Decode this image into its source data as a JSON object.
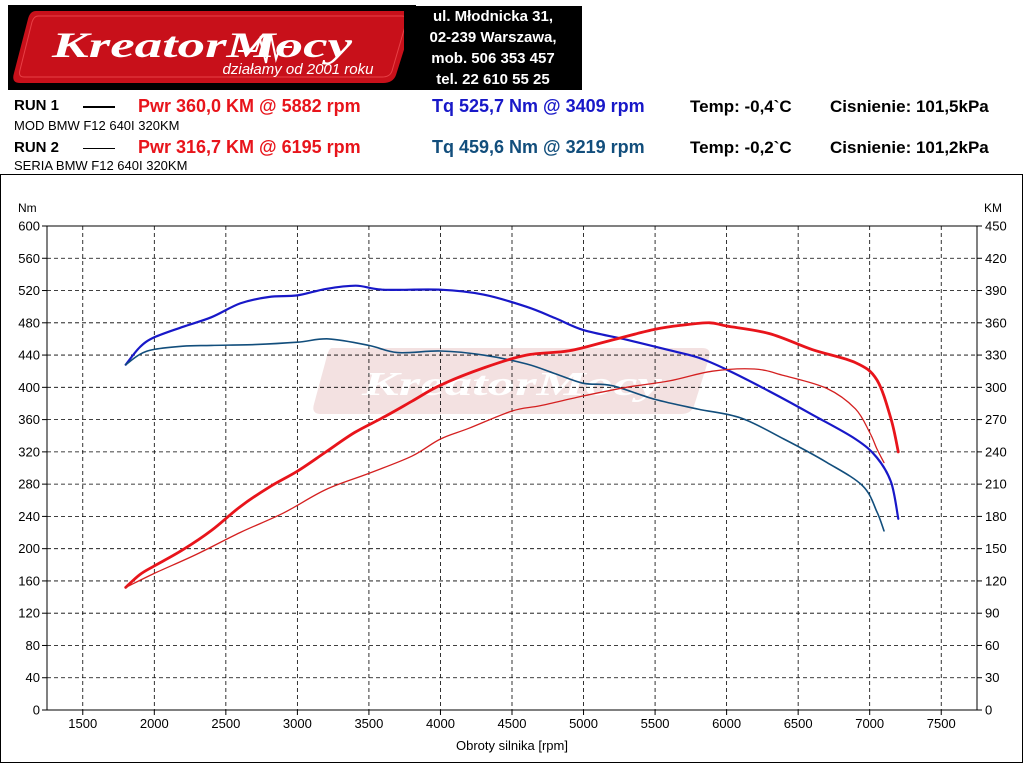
{
  "header": {
    "logo": {
      "brand": "KreatorMocy",
      "tagline": "działamy od 2001 roku"
    },
    "address": [
      "ul. Młodnicka 31,",
      "02-239  Warszawa,",
      "mob.  506 353 457",
      "tel.  22 610 55 25"
    ]
  },
  "runs": [
    {
      "label": "RUN 1",
      "pwr": "Pwr  360,0 KM @ 5882 rpm",
      "tq": "Tq 525,7 Nm @ 3409 rpm",
      "temp": "Temp: -0,4`C",
      "pressure": "Cisnienie: 101,5kPa",
      "description": "MOD BMW F12 640I 320KM"
    },
    {
      "label": "RUN 2",
      "pwr": "Pwr  316,7 KM @ 6195 rpm",
      "tq": "Tq 459,6 Nm @ 3219 rpm",
      "temp": "Temp: -0,2`C",
      "pressure": "Cisnienie: 101,2kPa",
      "description": "SERIA BMW F12 640I 320KM"
    }
  ],
  "colors": {
    "power_run1": "#e8141b",
    "power_run2": "#d42020",
    "torque_run1": "#1818c8",
    "torque_run2": "#124e7c"
  },
  "chart_data": {
    "type": "line",
    "xlabel": "Obroty silnika [rpm]",
    "ylabel_left": "Nm",
    "ylabel_right": "KM",
    "xlim": [
      1250,
      7750
    ],
    "ylim_left": [
      0,
      600
    ],
    "ylim_right": [
      0,
      450
    ],
    "x_ticks": [
      1500,
      2000,
      2500,
      3000,
      3500,
      4000,
      4500,
      5000,
      5500,
      6000,
      6500,
      7000,
      7500
    ],
    "y_ticks_left": [
      0,
      40,
      80,
      120,
      160,
      200,
      240,
      280,
      320,
      360,
      400,
      440,
      480,
      520,
      560,
      600
    ],
    "y_ticks_right": [
      0,
      30,
      60,
      90,
      120,
      150,
      180,
      210,
      240,
      270,
      300,
      330,
      360,
      390,
      420,
      450
    ],
    "grid": true,
    "series": [
      {
        "run": "RUN 1",
        "quantity": "torque",
        "axis": "left",
        "x": [
          1800,
          1900,
          2000,
          2200,
          2400,
          2600,
          2800,
          3000,
          3200,
          3409,
          3600,
          4000,
          4300,
          4600,
          4800,
          5000,
          5300,
          5600,
          5800,
          6000,
          6300,
          6600,
          6900,
          7050,
          7150,
          7200
        ],
        "y": [
          428,
          450,
          462,
          475,
          487,
          504,
          512,
          514,
          522,
          526,
          521,
          521,
          515,
          500,
          486,
          471,
          459,
          446,
          437,
          422,
          395,
          366,
          336,
          313,
          282,
          237
        ]
      },
      {
        "run": "RUN 2",
        "quantity": "torque",
        "axis": "left",
        "x": [
          1800,
          1900,
          2000,
          2200,
          2400,
          2700,
          3000,
          3219,
          3500,
          3700,
          4000,
          4300,
          4600,
          4800,
          5000,
          5200,
          5500,
          5800,
          6100,
          6400,
          6700,
          6950,
          7050,
          7100
        ],
        "y": [
          428,
          441,
          447,
          451,
          452,
          453,
          456,
          460,
          452,
          443,
          445,
          440,
          429,
          417,
          405,
          402,
          385,
          373,
          362,
          336,
          307,
          278,
          246,
          222
        ]
      },
      {
        "run": "RUN 1",
        "quantity": "power",
        "axis": "right",
        "x": [
          1800,
          1900,
          2000,
          2200,
          2400,
          2600,
          2800,
          3000,
          3200,
          3400,
          3600,
          3800,
          4000,
          4300,
          4600,
          4900,
          5200,
          5500,
          5700,
          5882,
          6000,
          6300,
          6600,
          6900,
          7050,
          7150,
          7200
        ],
        "y": [
          114,
          126,
          134,
          149,
          167,
          189,
          207,
          222,
          240,
          258,
          272,
          287,
          302,
          318,
          330,
          334,
          344,
          354,
          358,
          360,
          357,
          350,
          335,
          323,
          307,
          270,
          240
        ]
      },
      {
        "run": "RUN 2",
        "quantity": "power",
        "axis": "right",
        "x": [
          1800,
          2000,
          2300,
          2600,
          2900,
          3200,
          3500,
          3800,
          4000,
          4200,
          4500,
          4700,
          5000,
          5300,
          5600,
          5900,
          6195,
          6400,
          6700,
          6900,
          7000,
          7050,
          7100
        ],
        "y": [
          114,
          127,
          145,
          165,
          183,
          205,
          220,
          236,
          252,
          262,
          278,
          283,
          292,
          300,
          306,
          315,
          317,
          311,
          299,
          280,
          258,
          243,
          230
        ]
      }
    ]
  }
}
